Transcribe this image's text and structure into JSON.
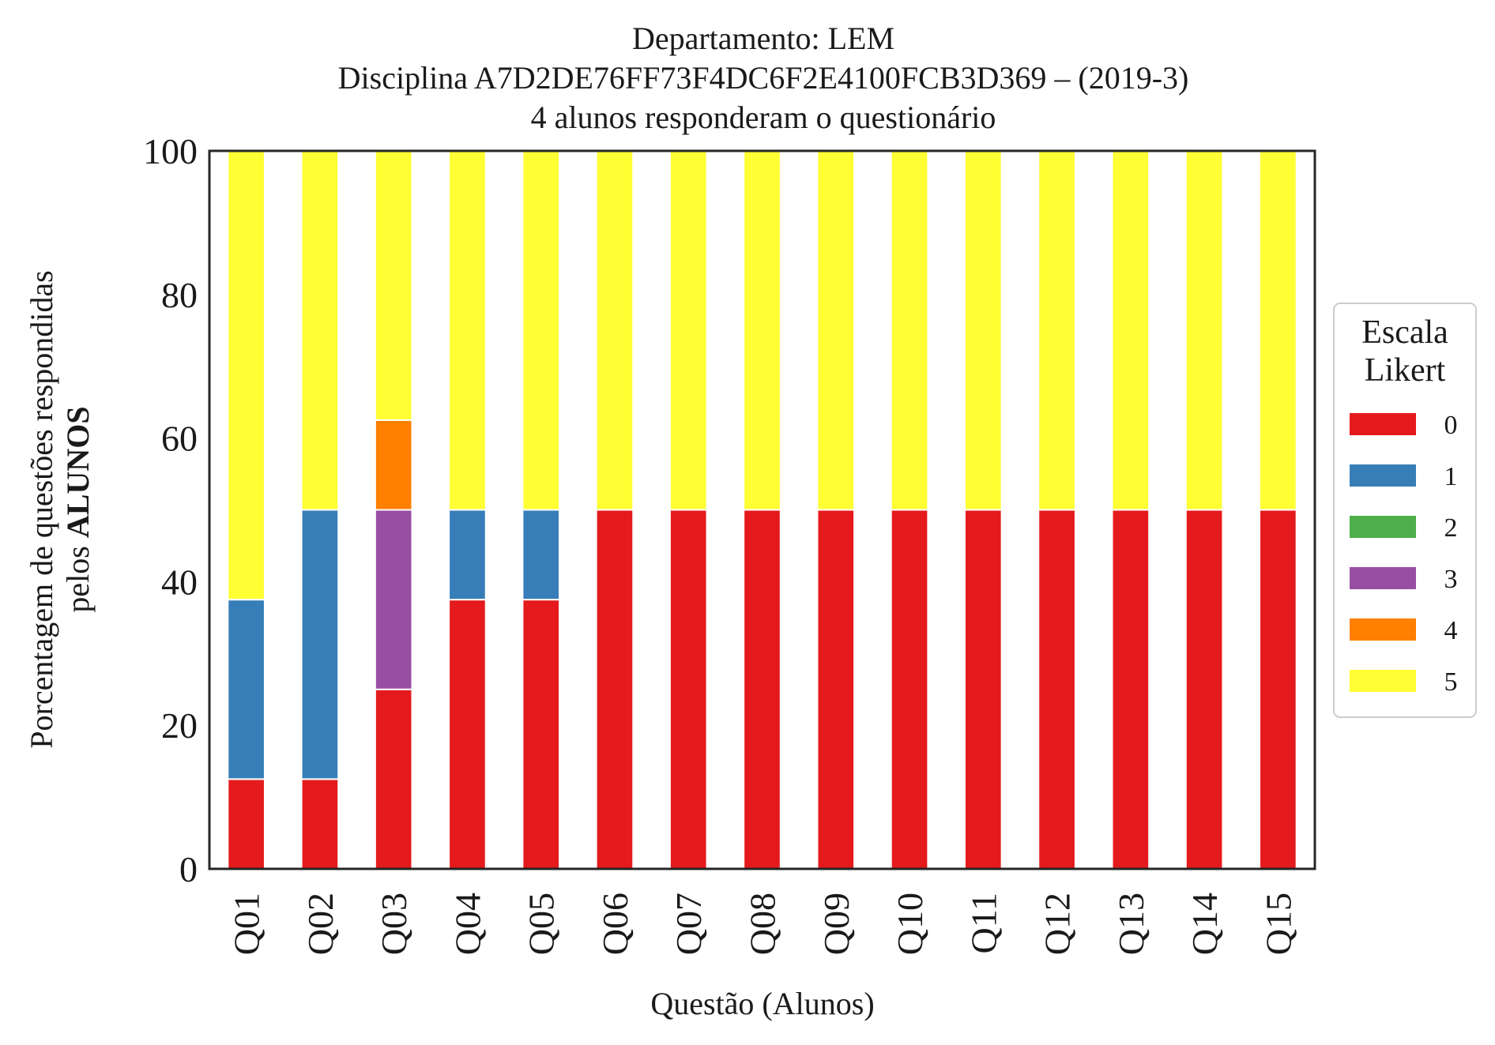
{
  "chart_data": {
    "type": "bar",
    "stacked": true,
    "title_lines": [
      "Departamento: LEM",
      "Disciplina A7D2DE76FF73F4DC6F2E4100FCB3D369 – (2019-3)",
      "4 alunos responderam o questionário"
    ],
    "xlabel": "Questão (Alunos)",
    "ylabel_line1": "Porcentagem de questões respondidas",
    "ylabel_line2_prefix": "pelos ",
    "ylabel_line2_bold": "ALUNOS",
    "ylim": [
      0,
      100
    ],
    "yticks": [
      "0",
      "20",
      "40",
      "60",
      "80",
      "100"
    ],
    "grid": false,
    "legend_position": "right",
    "legend_title_lines": [
      "Escala",
      "Likert"
    ],
    "categories": [
      "Q01",
      "Q02",
      "Q03",
      "Q04",
      "Q05",
      "Q06",
      "Q07",
      "Q08",
      "Q09",
      "Q10",
      "Q11",
      "Q12",
      "Q13",
      "Q14",
      "Q15"
    ],
    "series": [
      {
        "name": "0",
        "color": "#e41a1c",
        "values": [
          12.5,
          12.5,
          25,
          37.5,
          37.5,
          50,
          50,
          50,
          50,
          50,
          50,
          50,
          50,
          50,
          50
        ]
      },
      {
        "name": "1",
        "color": "#377eb8",
        "values": [
          25,
          37.5,
          0,
          12.5,
          12.5,
          0,
          0,
          0,
          0,
          0,
          0,
          0,
          0,
          0,
          0
        ]
      },
      {
        "name": "2",
        "color": "#4daf4a",
        "values": [
          0,
          0,
          0,
          0,
          0,
          0,
          0,
          0,
          0,
          0,
          0,
          0,
          0,
          0,
          0
        ]
      },
      {
        "name": "3",
        "color": "#984ea3",
        "values": [
          0,
          0,
          25,
          0,
          0,
          0,
          0,
          0,
          0,
          0,
          0,
          0,
          0,
          0,
          0
        ]
      },
      {
        "name": "4",
        "color": "#ff7f00",
        "values": [
          0,
          0,
          12.5,
          0,
          0,
          0,
          0,
          0,
          0,
          0,
          0,
          0,
          0,
          0,
          0
        ]
      },
      {
        "name": "5",
        "color": "#ffff33",
        "values": [
          62.5,
          50,
          37.5,
          50,
          50,
          50,
          50,
          50,
          50,
          50,
          50,
          50,
          50,
          50,
          50
        ]
      }
    ]
  }
}
